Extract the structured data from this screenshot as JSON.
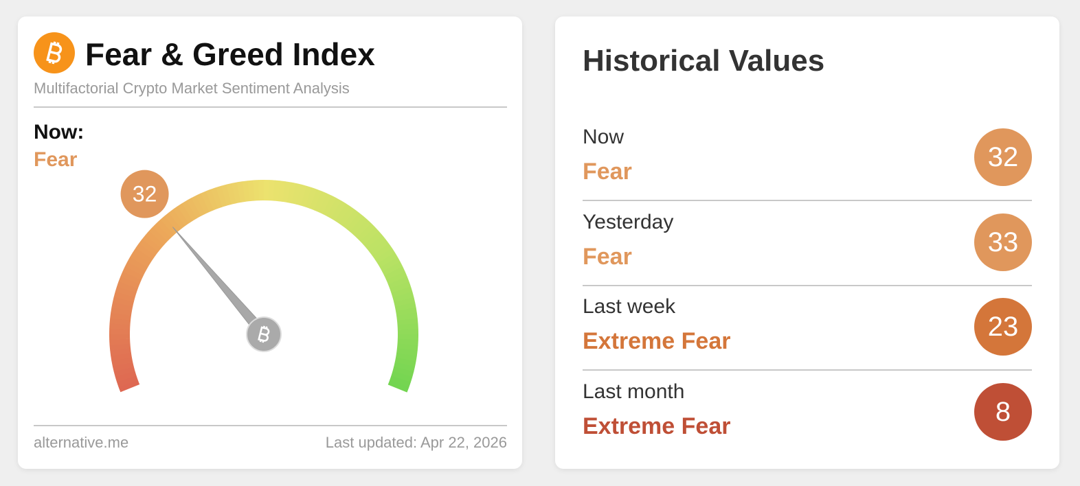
{
  "header": {
    "title": "Fear & Greed Index",
    "subtitle": "Multifactorial Crypto Market Sentiment Analysis"
  },
  "now": {
    "label": "Now:",
    "classification": "Fear",
    "color": "#e0975c"
  },
  "gauge": {
    "value": 32,
    "range": [
      0,
      100
    ],
    "color": "#e0975c"
  },
  "footer": {
    "source": "alternative.me",
    "last_updated": "Last updated: Apr 22, 2026"
  },
  "historical": {
    "title": "Historical Values",
    "rows": [
      {
        "label": "Now",
        "classification": "Fear",
        "value": 32,
        "color": "#e0975c"
      },
      {
        "label": "Yesterday",
        "classification": "Fear",
        "value": 33,
        "color": "#e0975c"
      },
      {
        "label": "Last week",
        "classification": "Extreme Fear",
        "value": 23,
        "color": "#d4763a"
      },
      {
        "label": "Last month",
        "classification": "Extreme Fear",
        "value": 8,
        "color": "#bf4f36"
      }
    ]
  }
}
